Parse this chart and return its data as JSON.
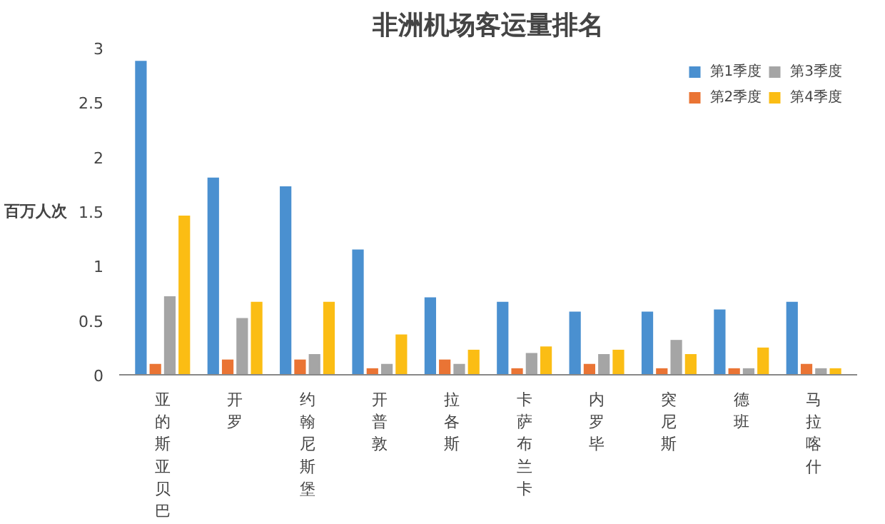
{
  "chart_data": {
    "type": "bar",
    "title": "非洲机场客运量排名",
    "ylabel": "百万人次",
    "categories": [
      "亚的斯亚贝巴",
      "开罗",
      "约翰尼斯堡",
      "开普敦",
      "拉各斯",
      "卡萨布兰卡",
      "内罗毕",
      "突尼斯",
      "德班",
      "马拉喀什"
    ],
    "series": [
      {
        "name": "第1季度",
        "color": "#4a90d0",
        "values": [
          2.88,
          1.81,
          1.73,
          1.15,
          0.71,
          0.67,
          0.58,
          0.58,
          0.6,
          0.67
        ]
      },
      {
        "name": "第2季度",
        "color": "#ea7434",
        "values": [
          0.1,
          0.14,
          0.14,
          0.06,
          0.14,
          0.06,
          0.1,
          0.06,
          0.06,
          0.1
        ]
      },
      {
        "name": "第3季度",
        "color": "#a5a5a5",
        "values": [
          0.72,
          0.52,
          0.19,
          0.1,
          0.1,
          0.2,
          0.19,
          0.32,
          0.06,
          0.06
        ]
      },
      {
        "name": "第4季度",
        "color": "#fbbd14",
        "values": [
          1.46,
          0.67,
          0.67,
          0.37,
          0.23,
          0.26,
          0.23,
          0.19,
          0.25,
          0.06
        ]
      }
    ],
    "ylim": [
      0,
      3
    ],
    "yticks": [
      0,
      0.5,
      1,
      1.5,
      2,
      2.5,
      3
    ],
    "grid": false,
    "legend": "top right"
  }
}
